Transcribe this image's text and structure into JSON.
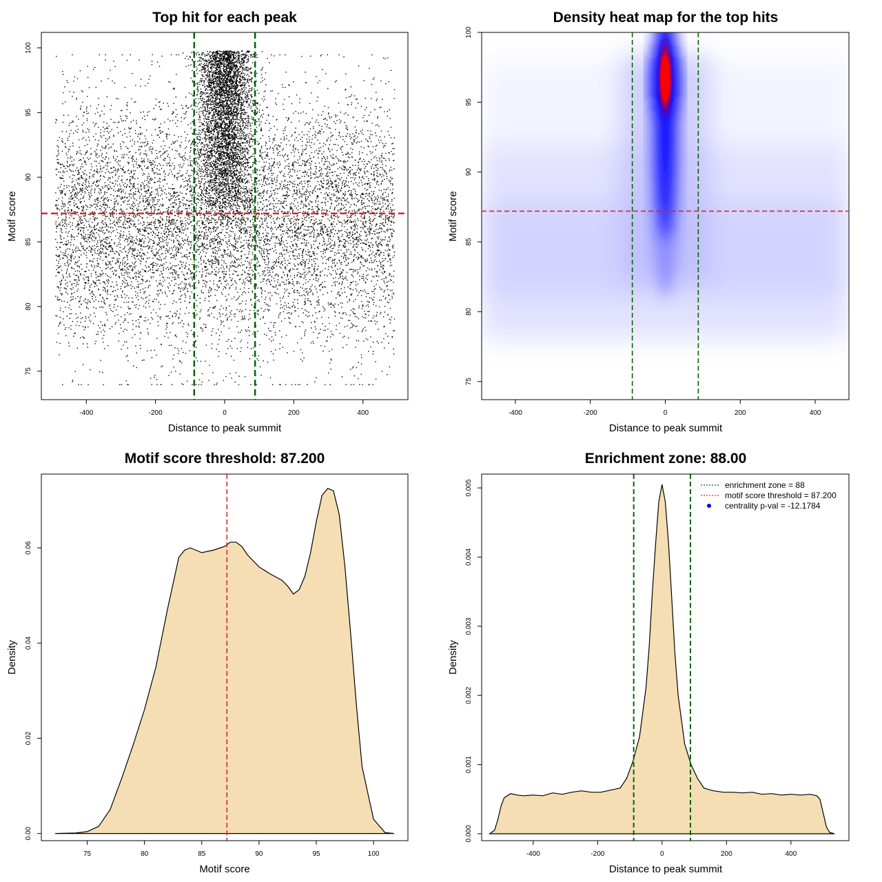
{
  "chart_data": [
    {
      "type": "scatter",
      "title": "Top hit for each peak",
      "xlabel": "Distance to peak summit",
      "ylabel": "Motif score",
      "xlim": [
        -530,
        530
      ],
      "ylim": [
        72.8,
        101.2
      ],
      "x_ticks": [
        -400,
        -200,
        0,
        200,
        400
      ],
      "y_ticks": [
        75,
        80,
        85,
        90,
        95,
        100
      ],
      "vlines": [
        -88,
        88
      ],
      "hline": 87.2,
      "point_distribution": {
        "background": {
          "count": 9000,
          "x_range": [
            -490,
            490
          ],
          "y_mean": 86.5,
          "y_sd": 4.6,
          "y_range": [
            74,
            99.5
          ]
        },
        "central": {
          "count": 4500,
          "x_mean": 0,
          "x_sd": 40,
          "y_range": [
            86,
            99.8
          ]
        }
      },
      "colors": {
        "points": "#000000",
        "vlines": "#006400",
        "hline": "#d62728"
      }
    },
    {
      "type": "heatmap",
      "title": "Density heat map for the top hits",
      "xlabel": "Distance to peak summit",
      "ylabel": "Motif score",
      "xlim": [
        -490,
        490
      ],
      "ylim": [
        73.7,
        100
      ],
      "x_ticks": [
        -400,
        -200,
        0,
        200,
        400
      ],
      "y_ticks": [
        75,
        80,
        85,
        90,
        95,
        100
      ],
      "vlines": [
        -88,
        88
      ],
      "hline": 87.2,
      "hotspot": {
        "x": 0,
        "y": 96.7
      },
      "colors": {
        "low": "#ffffff",
        "mid": "#0000ff",
        "high": "#ff0000",
        "vlines": "#006400",
        "hline": "#d62728"
      }
    },
    {
      "type": "area",
      "title": "Motif score threshold: 87.200",
      "xlabel": "Motif score",
      "ylabel": "Density",
      "xlim": [
        71,
        103
      ],
      "ylim": [
        -0.0015,
        0.0755
      ],
      "x_ticks": [
        75,
        80,
        85,
        90,
        95,
        100
      ],
      "y_ticks": [
        0.0,
        0.02,
        0.04,
        0.06
      ],
      "y_tick_labels": [
        "0.00",
        "0.02",
        "0.04",
        "0.06"
      ],
      "vlines": [
        87.2
      ],
      "x": [
        72.2,
        74,
        75,
        76,
        77,
        78,
        79,
        80,
        81,
        82,
        83,
        83.5,
        84,
        84.5,
        85,
        86,
        87,
        87.5,
        88,
        88.5,
        89,
        90,
        91,
        92,
        92.5,
        93,
        93.5,
        94,
        94.5,
        95,
        95.5,
        96,
        96.5,
        97,
        97.5,
        98,
        98.5,
        99,
        100,
        101,
        101.8
      ],
      "y": [
        0.0,
        0.0001,
        0.0004,
        0.0015,
        0.005,
        0.0115,
        0.0185,
        0.026,
        0.035,
        0.047,
        0.058,
        0.0595,
        0.06,
        0.0595,
        0.059,
        0.0595,
        0.0603,
        0.0612,
        0.0612,
        0.0603,
        0.0585,
        0.056,
        0.0545,
        0.0532,
        0.052,
        0.0503,
        0.0512,
        0.054,
        0.059,
        0.0655,
        0.071,
        0.0725,
        0.072,
        0.067,
        0.056,
        0.042,
        0.027,
        0.014,
        0.003,
        0.0002,
        0.0
      ],
      "colors": {
        "fill": "#f5deb3",
        "line": "#000000",
        "vline": "#d62728"
      }
    },
    {
      "type": "area",
      "title": "Enrichment zone: 88.00",
      "xlabel": "Distance to peak summit",
      "ylabel": "Density",
      "xlim": [
        -560,
        580
      ],
      "ylim": [
        -0.0001,
        0.0052
      ],
      "x_ticks": [
        -400,
        -200,
        0,
        200,
        400
      ],
      "y_ticks": [
        0.0,
        0.001,
        0.002,
        0.003,
        0.004,
        0.005
      ],
      "y_tick_labels": [
        "0.000",
        "0.001",
        "0.002",
        "0.003",
        "0.004",
        "0.005"
      ],
      "vlines": [
        -88,
        88
      ],
      "x": [
        -535,
        -520,
        -510,
        -500,
        -490,
        -470,
        -450,
        -430,
        -400,
        -370,
        -340,
        -310,
        -280,
        -250,
        -220,
        -190,
        -160,
        -130,
        -110,
        -90,
        -70,
        -50,
        -40,
        -30,
        -20,
        -10,
        0,
        10,
        20,
        30,
        40,
        50,
        70,
        90,
        110,
        130,
        160,
        190,
        220,
        250,
        280,
        310,
        340,
        370,
        400,
        430,
        460,
        480,
        490,
        500,
        510,
        520,
        535
      ],
      "y": [
        0.0,
        5e-05,
        0.0002,
        0.0004,
        0.00052,
        0.00058,
        0.00056,
        0.00055,
        0.00056,
        0.00055,
        0.00059,
        0.00057,
        0.0006,
        0.00062,
        0.0006,
        0.0006,
        0.00063,
        0.00066,
        0.0008,
        0.00105,
        0.0014,
        0.0021,
        0.0027,
        0.0035,
        0.0042,
        0.0048,
        0.00505,
        0.0048,
        0.0042,
        0.0034,
        0.0026,
        0.002,
        0.0013,
        0.001,
        0.0008,
        0.00066,
        0.00062,
        0.0006,
        0.0006,
        0.00059,
        0.0006,
        0.00057,
        0.00058,
        0.00056,
        0.00057,
        0.00056,
        0.00057,
        0.00055,
        0.0005,
        0.0003,
        0.0001,
        2e-05,
        0.0
      ],
      "legend": [
        {
          "label": "enrichment zone = 88",
          "color": "#006400",
          "style": "dotted-line"
        },
        {
          "label": "motif score threshold = 87.200",
          "color": "#d62728",
          "style": "dotted-line"
        },
        {
          "label": "centrality p-val = -12.1784",
          "color": "#0000ff",
          "style": "point"
        }
      ],
      "legend_position": "top-right",
      "colors": {
        "fill": "#f5deb3",
        "line": "#000000",
        "vlines": "#006400"
      }
    }
  ]
}
